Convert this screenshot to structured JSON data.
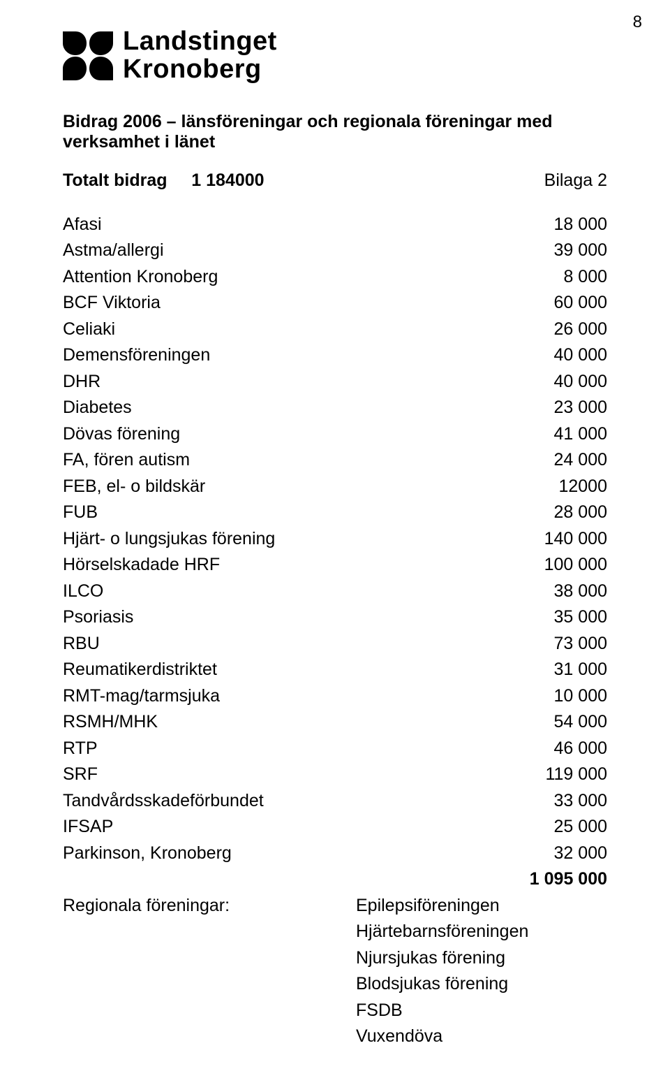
{
  "page_number": "8",
  "logo": {
    "line1": "Landstinget",
    "line2": "Kronoberg"
  },
  "heading": "Bidrag 2006 – länsföreningar och regionala föreningar med verksamhet i länet",
  "total": {
    "label": "Totalt bidrag     1 184000",
    "bilaga": "Bilaga 2"
  },
  "rows": [
    {
      "name": "Afasi",
      "value": "18 000"
    },
    {
      "name": "Astma/allergi",
      "value": "39 000"
    },
    {
      "name": "Attention Kronoberg",
      "value": "8 000"
    },
    {
      "name": "BCF Viktoria",
      "value": "60 000"
    },
    {
      "name": "Celiaki",
      "value": "26 000"
    },
    {
      "name": "Demensföreningen",
      "value": "40 000"
    },
    {
      "name": "DHR",
      "value": "40 000"
    },
    {
      "name": "Diabetes",
      "value": "23 000"
    },
    {
      "name": "Dövas förening",
      "value": "41 000"
    },
    {
      "name": "FA, fören autism",
      "value": "24 000"
    },
    {
      "name": "FEB, el- o bildskär",
      "value": "12000"
    },
    {
      "name": "FUB",
      "value": "28 000"
    },
    {
      "name": "Hjärt- o lungsjukas förening",
      "value": "140 000"
    },
    {
      "name": "Hörselskadade HRF",
      "value": "100 000"
    },
    {
      "name": "ILCO",
      "value": "38 000"
    },
    {
      "name": "Psoriasis",
      "value": "35 000"
    },
    {
      "name": "RBU",
      "value": "73 000"
    },
    {
      "name": "Reumatikerdistriktet",
      "value": "31 000"
    },
    {
      "name": "RMT-mag/tarmsjuka",
      "value": "10 000"
    },
    {
      "name": "RSMH/MHK",
      "value": "54 000"
    },
    {
      "name": "RTP",
      "value": "46 000"
    },
    {
      "name": "SRF",
      "value": "119 000"
    },
    {
      "name": "Tandvårdsskadeförbundet",
      "value": "33 000"
    },
    {
      "name": "IFSAP",
      "value": "25 000"
    },
    {
      "name": "Parkinson, Kronoberg",
      "value": "32 000"
    }
  ],
  "grand_total": "1 095 000",
  "regional": {
    "label": "Regionala föreningar:",
    "items": [
      "Epilepsiföreningen",
      "Hjärtebarnsföreningen",
      "Njursjukas förening",
      "Blodsjukas förening",
      "FSDB",
      "Vuxendöva"
    ]
  }
}
